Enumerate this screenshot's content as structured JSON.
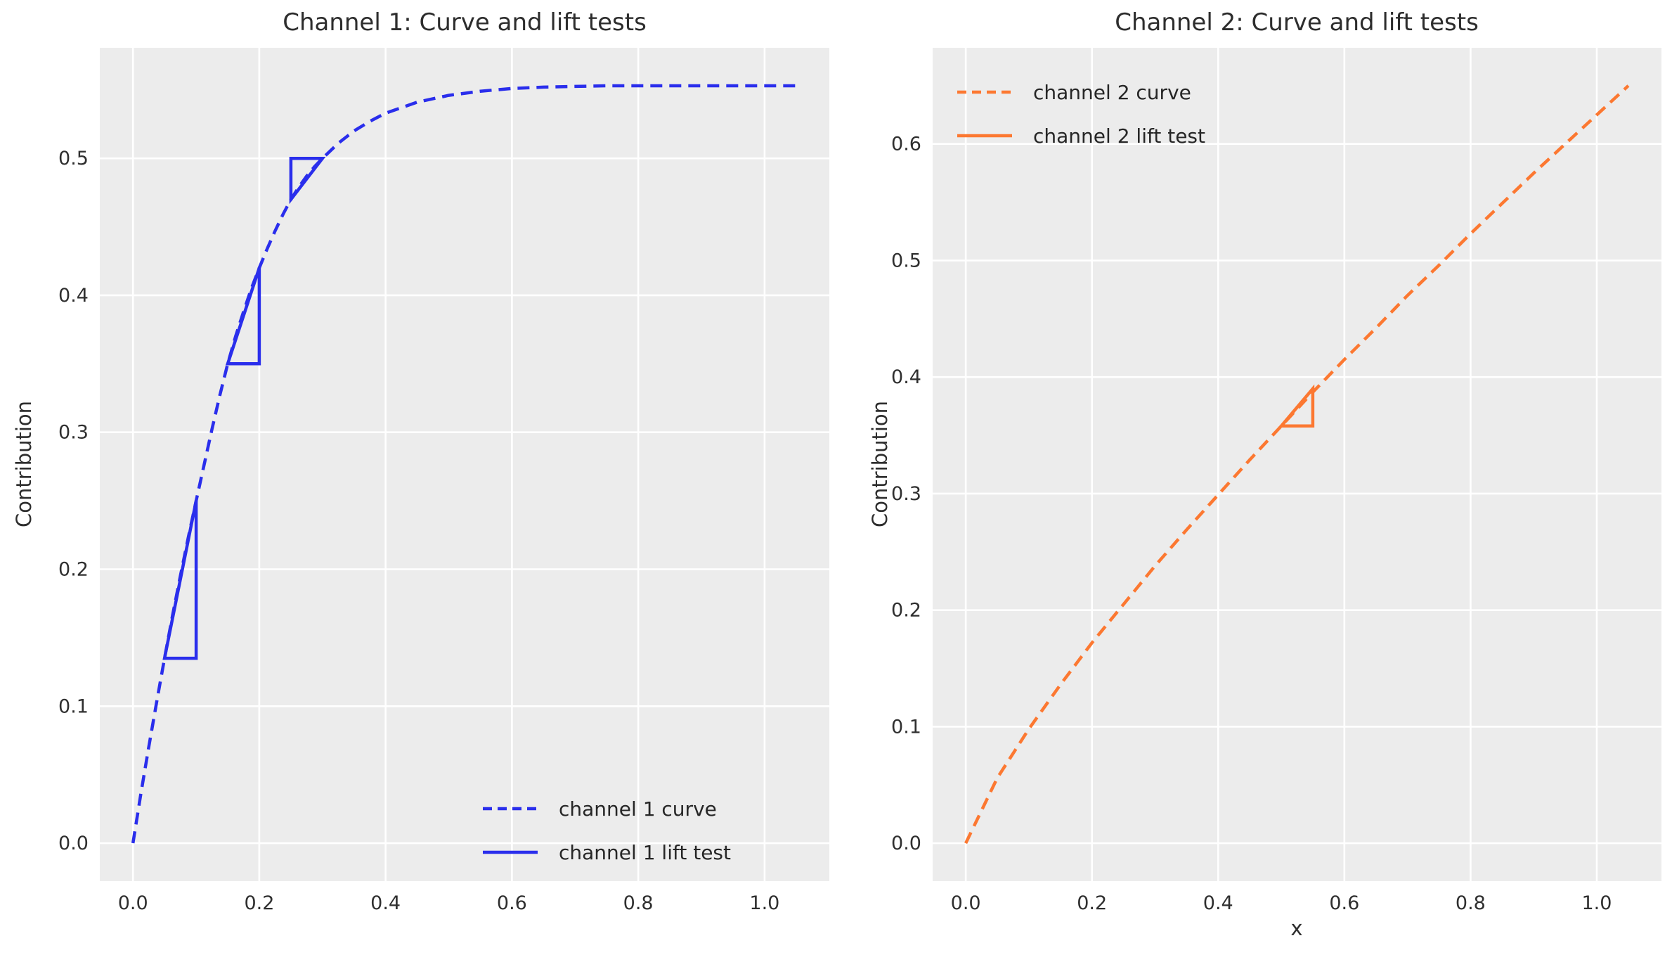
{
  "figure": {
    "background": "#ffffff",
    "panel_background": "#ececec",
    "grid_color": "#ffffff",
    "text_color": "#3a3a3a",
    "tick_color": "#2f2f2f"
  },
  "chart_data": [
    {
      "type": "line",
      "title": "Channel 1: Curve and lift tests",
      "xlabel": "",
      "ylabel": "Contribution",
      "color": "#2a2eec",
      "grid": true,
      "xlim": [
        -0.0525,
        1.1025
      ],
      "ylim": [
        -0.0277,
        0.5807
      ],
      "xticks": [
        0.0,
        0.2,
        0.4,
        0.6,
        0.8,
        1.0
      ],
      "yticks": [
        0.0,
        0.1,
        0.2,
        0.3,
        0.4,
        0.5
      ],
      "legend": {
        "position": "lower-right",
        "entries": [
          {
            "label": "channel 1 curve",
            "style": "dashed"
          },
          {
            "label": "channel 1 lift test",
            "style": "solid"
          }
        ]
      },
      "series": [
        {
          "name": "channel 1 curve",
          "style": "dashed",
          "x": [
            0,
            0.0125,
            0.025,
            0.0375,
            0.05,
            0.0625,
            0.075,
            0.0875,
            0.1,
            0.1125,
            0.125,
            0.1375,
            0.15,
            0.1625,
            0.175,
            0.1875,
            0.2,
            0.2125,
            0.225,
            0.2375,
            0.25,
            0.2625,
            0.275,
            0.2875,
            0.3,
            0.325,
            0.35,
            0.375,
            0.4,
            0.45,
            0.5,
            0.55,
            0.6,
            0.65,
            0.7,
            0.75,
            0.8,
            0.85,
            0.9,
            0.95,
            1.0,
            1.05
          ],
          "y": [
            0,
            0.036,
            0.07,
            0.103,
            0.135,
            0.166,
            0.195,
            0.223,
            0.25,
            0.276,
            0.302,
            0.327,
            0.35,
            0.37,
            0.388,
            0.405,
            0.42,
            0.434,
            0.447,
            0.459,
            0.47,
            0.479,
            0.487,
            0.494,
            0.5,
            0.511,
            0.52,
            0.527,
            0.533,
            0.541,
            0.546,
            0.549,
            0.551,
            0.552,
            0.5525,
            0.553,
            0.553,
            0.553,
            0.553,
            0.553,
            0.553,
            0.553
          ]
        }
      ],
      "lift_tests": [
        {
          "name": "channel 1 lift test",
          "points": [
            [
              0.05,
              0.135
            ],
            [
              0.1,
              0.135
            ],
            [
              0.1,
              0.25
            ]
          ]
        },
        {
          "name": "channel 1 lift test",
          "points": [
            [
              0.15,
              0.35
            ],
            [
              0.2,
              0.35
            ],
            [
              0.2,
              0.42
            ]
          ]
        },
        {
          "name": "channel 1 lift test",
          "points": [
            [
              0.25,
              0.47
            ],
            [
              0.25,
              0.5
            ],
            [
              0.3,
              0.5
            ]
          ]
        }
      ]
    },
    {
      "type": "line",
      "title": "Channel 2: Curve and lift tests",
      "xlabel": "x",
      "ylabel": "Contribution",
      "color": "#fc7831",
      "grid": true,
      "xlim": [
        -0.0525,
        1.1025
      ],
      "ylim": [
        -0.0325,
        0.6825
      ],
      "xticks": [
        0.0,
        0.2,
        0.4,
        0.6,
        0.8,
        1.0
      ],
      "yticks": [
        0.0,
        0.1,
        0.2,
        0.3,
        0.4,
        0.5,
        0.6
      ],
      "legend": {
        "position": "upper-left",
        "entries": [
          {
            "label": "channel 2 curve",
            "style": "dashed"
          },
          {
            "label": "channel 2 lift test",
            "style": "solid"
          }
        ]
      },
      "series": [
        {
          "name": "channel 2 curve",
          "style": "dashed",
          "x": [
            0,
            0.05,
            0.1,
            0.15,
            0.2,
            0.25,
            0.3,
            0.35,
            0.4,
            0.45,
            0.5,
            0.55,
            0.6,
            0.65,
            0.7,
            0.75,
            0.8,
            0.85,
            0.9,
            0.95,
            1.0,
            1.05
          ],
          "y": [
            0,
            0.056,
            0.098,
            0.136,
            0.172,
            0.205,
            0.238,
            0.269,
            0.299,
            0.329,
            0.358,
            0.387,
            0.415,
            0.442,
            0.47,
            0.496,
            0.523,
            0.549,
            0.575,
            0.6,
            0.625,
            0.65
          ]
        }
      ],
      "lift_tests": [
        {
          "name": "channel 2 lift test",
          "points": [
            [
              0.5,
              0.358
            ],
            [
              0.55,
              0.358
            ],
            [
              0.55,
              0.39
            ]
          ]
        }
      ]
    }
  ]
}
